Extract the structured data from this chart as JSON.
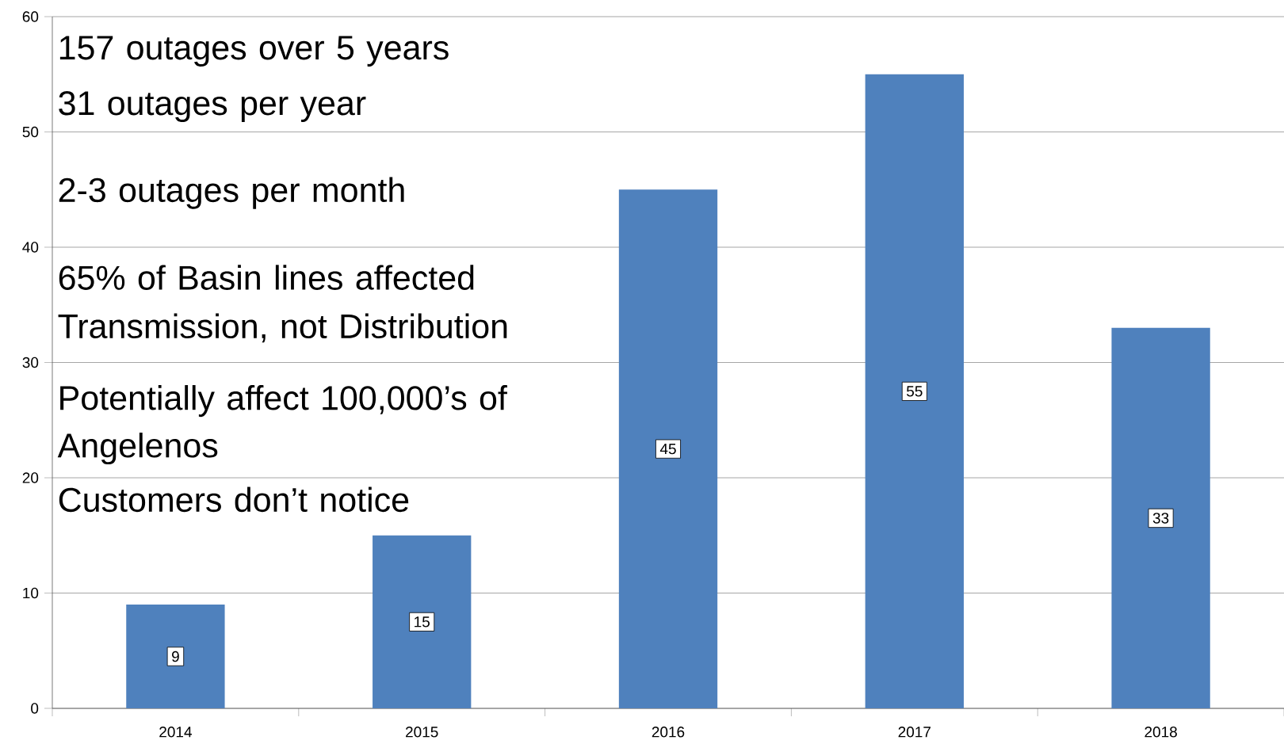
{
  "chart_data": {
    "type": "bar",
    "categories": [
      "2014",
      "2015",
      "2016",
      "2017",
      "2018"
    ],
    "values": [
      9,
      15,
      45,
      55,
      33
    ],
    "color": "#4f81bd",
    "ylim": [
      0,
      60
    ],
    "yticks": [
      0,
      10,
      20,
      30,
      40,
      50,
      60
    ],
    "grid": "y",
    "data_labels": true,
    "annotations": [
      "157 outages over 5 years",
      "31 outages per year",
      "2-3 outages per month",
      "65% of Basin lines affected",
      "Transmission, not Distribution",
      "Potentially affect 100,000’s of Angelenos",
      "Customers don’t notice"
    ]
  }
}
